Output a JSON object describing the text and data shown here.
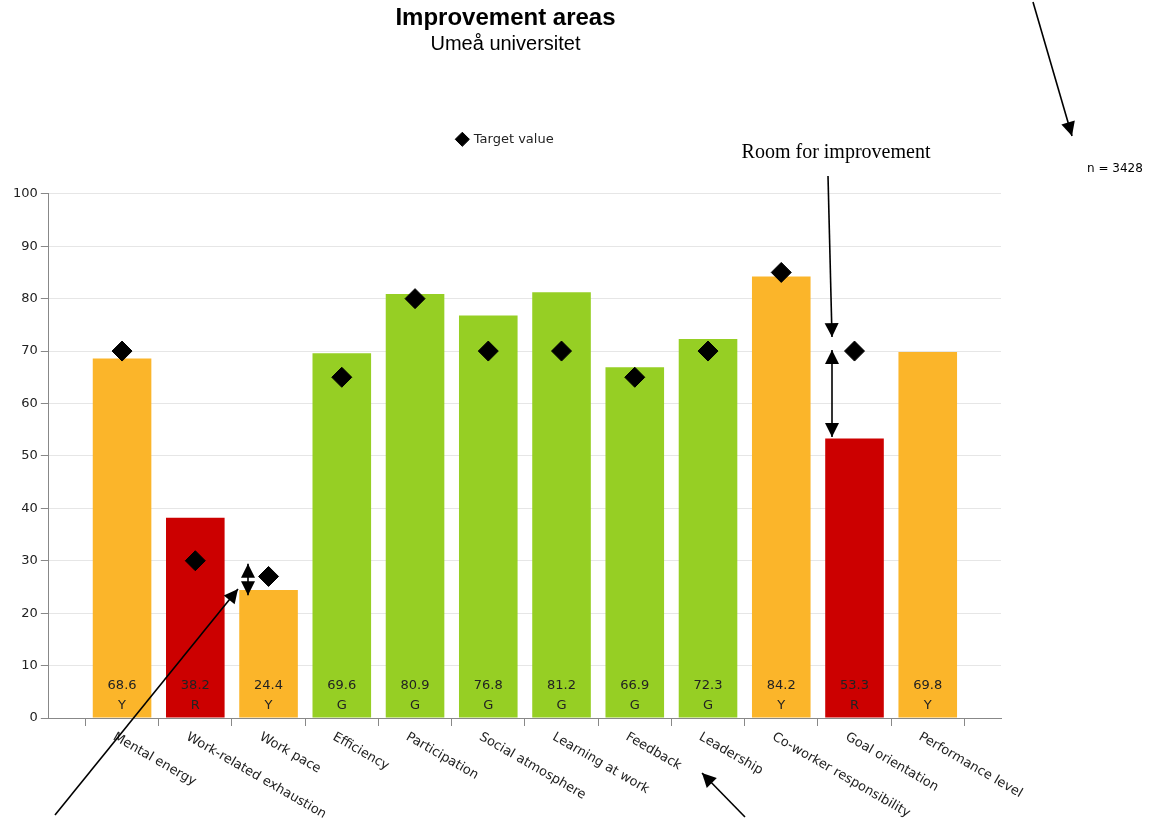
{
  "chart_data": {
    "type": "bar",
    "title": "Improvement areas",
    "subtitle": "Umeå universitet",
    "categories": [
      "Mental energy",
      "Work-related exhaustion",
      "Work pace",
      "Efficiency",
      "Participation",
      "Social atmosphere",
      "Learning at work",
      "Feedback",
      "Leadership",
      "Co-worker responsibility",
      "Goal orientation",
      "Performance level"
    ],
    "series": [
      {
        "colors": [
          "#fbb52a",
          "#cc0000",
          "#fbb52a",
          "#96cf24",
          "#96cf24",
          "#96cf24",
          "#96cf24",
          "#96cf24",
          "#96cf24",
          "#fbb52a",
          "#cc0000",
          "#fbb52a"
        ],
        "values": [
          68.6,
          38.2,
          24.4,
          69.6,
          80.9,
          76.8,
          81.2,
          66.9,
          72.3,
          84.2,
          53.3,
          69.8
        ],
        "value_labels": [
          "68.6\nY",
          "38.2\nR",
          "24.4\nY",
          "69.6\nG",
          "80.9\nG",
          "76.8\nG",
          "81.2\nG",
          "66.9\nG",
          "72.3\nG",
          "84.2\nY",
          "53.3\nR",
          "69.8\nY"
        ]
      },
      {
        "type": "scatter",
        "name": "Target value",
        "color": "#000000",
        "marker": "diamond",
        "x": [
          "Mental energy",
          "Work-related exhaustion",
          "Work pace",
          "Efficiency",
          "Participation",
          "Social atmosphere",
          "Learning at work",
          "Feedback",
          "Leadership",
          "Co-worker responsibility",
          "Goal orientation"
        ],
        "values": [
          70,
          30,
          27,
          65,
          80,
          70,
          70,
          65,
          70,
          85,
          70
        ]
      }
    ],
    "ylim": [
      0,
      100
    ],
    "yticks": [
      0,
      10,
      20,
      30,
      40,
      50,
      60,
      70,
      80,
      90,
      100
    ],
    "grid": "y",
    "legend": "top",
    "annotations": [
      "Room for improvement",
      "n = 3428"
    ]
  }
}
